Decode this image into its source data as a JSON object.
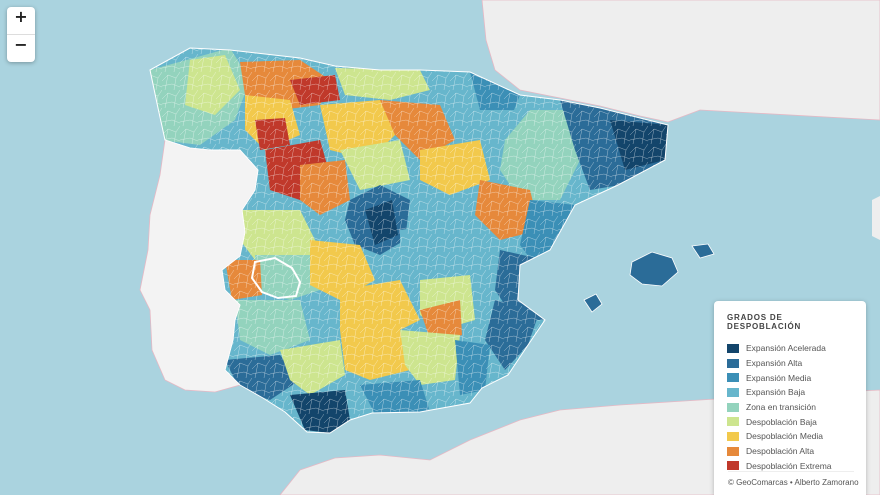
{
  "map": {
    "zoom_in": "+",
    "zoom_out": "−"
  },
  "legend": {
    "title": "GRADOS DE DESPOBLACIÓN",
    "items": [
      {
        "label": "Expansión Acelerada",
        "color": "#13456b"
      },
      {
        "label": "Expansión Alta",
        "color": "#2b6c98"
      },
      {
        "label": "Expansión Media",
        "color": "#3b8fb6"
      },
      {
        "label": "Expansión Baja",
        "color": "#67b6cc"
      },
      {
        "label": "Zona en transición",
        "color": "#93d3bd"
      },
      {
        "label": "Despoblación Baja",
        "color": "#cde58f"
      },
      {
        "label": "Despoblación Media",
        "color": "#f2c94c"
      },
      {
        "label": "Despoblación Alta",
        "color": "#e6893b"
      },
      {
        "label": "Despoblación Extrema",
        "color": "#c0392b"
      }
    ]
  },
  "attribution": "© GeoComarcas • Alberto Zamorano"
}
